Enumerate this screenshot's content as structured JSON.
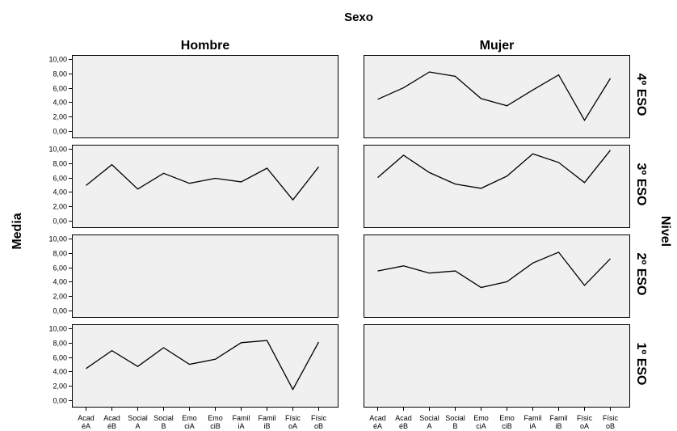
{
  "chart_data": {
    "type": "line",
    "title": "Sexo",
    "ylabel": "Media",
    "row_label": "Nivel",
    "column_headers": [
      "Hombre",
      "Mujer"
    ],
    "row_headers": [
      "4º ESO",
      "3º ESO",
      "2º ESO",
      "1º ESO"
    ],
    "categories": [
      "AcadéA",
      "AcadéB",
      "SocialA",
      "SocialB",
      "EmociA",
      "EmociB",
      "FamiliA",
      "FamiliB",
      "FísicoA",
      "FísicoB"
    ],
    "category_labels": [
      [
        "Acad",
        "éA"
      ],
      [
        "Acad",
        "éB"
      ],
      [
        "Social",
        "A"
      ],
      [
        "Social",
        "B"
      ],
      [
        "Emo",
        "ciA"
      ],
      [
        "Emo",
        "ciB"
      ],
      [
        "Famil",
        "iA"
      ],
      [
        "Famil",
        "iB"
      ],
      [
        "Físic",
        "oA"
      ],
      [
        "Físic",
        "oB"
      ]
    ],
    "y_ticks": [
      "0,00",
      "2,00",
      "4,00",
      "6,00",
      "8,00",
      "10,00"
    ],
    "ylim": [
      0,
      10
    ],
    "grid": false,
    "panels": [
      {
        "row": "4º ESO",
        "column": "Hombre",
        "values": []
      },
      {
        "row": "4º ESO",
        "column": "Mujer",
        "values": [
          4.4,
          6.0,
          8.2,
          7.6,
          4.5,
          3.5,
          5.7,
          7.8,
          1.5,
          7.3
        ]
      },
      {
        "row": "3º ESO",
        "column": "Hombre",
        "values": [
          4.9,
          7.8,
          4.4,
          6.6,
          5.2,
          5.9,
          5.4,
          7.3,
          2.9,
          7.5
        ]
      },
      {
        "row": "3º ESO",
        "column": "Mujer",
        "values": [
          6.0,
          9.1,
          6.7,
          5.1,
          4.5,
          6.2,
          9.3,
          8.1,
          5.3,
          9.8
        ]
      },
      {
        "row": "2º ESO",
        "column": "Hombre",
        "values": []
      },
      {
        "row": "2º ESO",
        "column": "Mujer",
        "values": [
          5.5,
          6.2,
          5.2,
          5.5,
          3.2,
          4.0,
          6.6,
          8.1,
          3.5,
          7.2
        ]
      },
      {
        "row": "1º ESO",
        "column": "Hombre",
        "values": [
          4.4,
          6.9,
          4.7,
          7.3,
          5.0,
          5.7,
          8.0,
          8.3,
          1.5,
          8.1
        ]
      },
      {
        "row": "1º ESO",
        "column": "Mujer",
        "values": []
      }
    ]
  },
  "colors": {
    "panel_background": "#f0f0f0",
    "line": "#000000",
    "page_background": "#ffffff"
  }
}
